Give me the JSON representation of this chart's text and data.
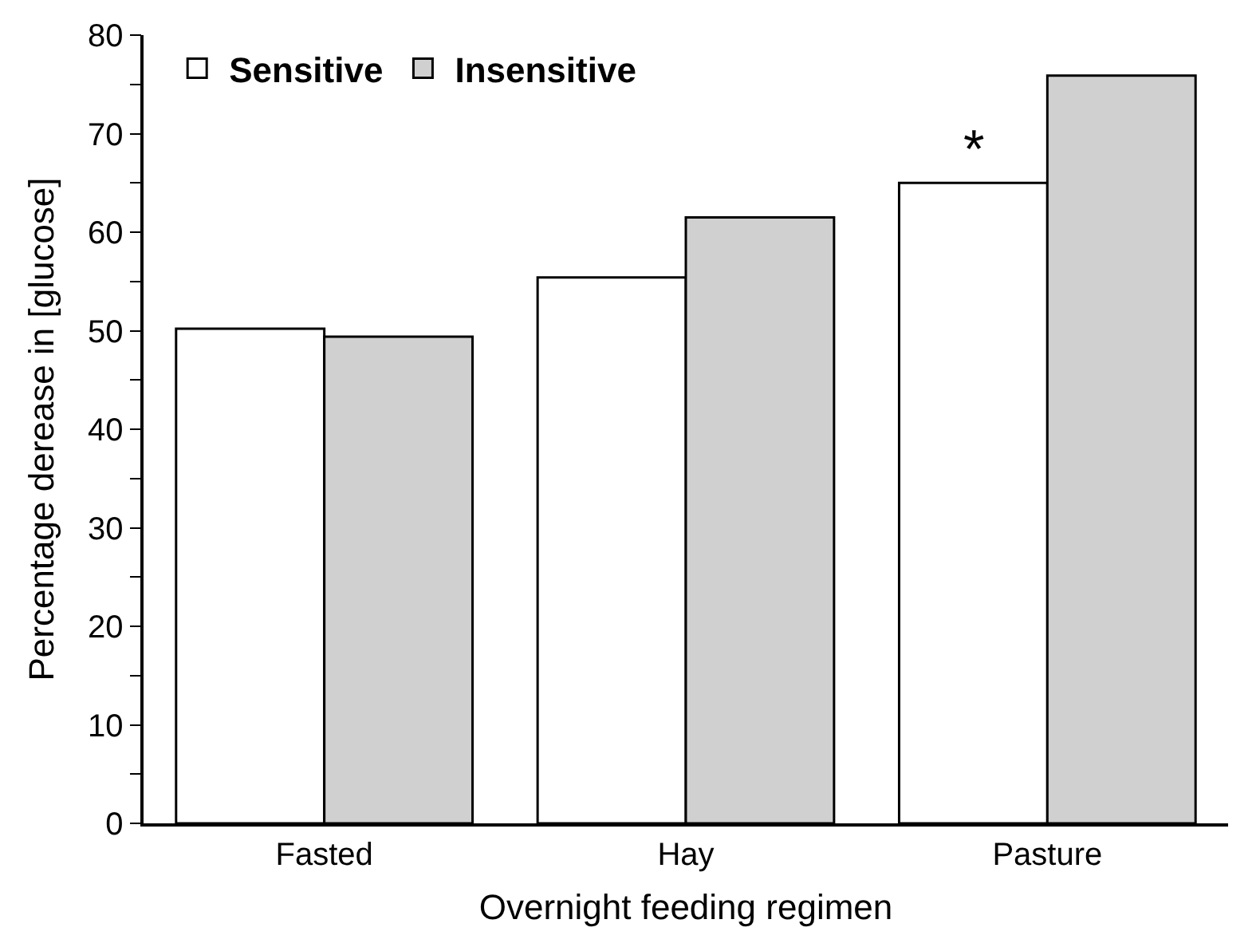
{
  "chart_data": {
    "type": "bar",
    "xlabel": "Overnight feeding regimen",
    "ylabel": "Percentage derease in [glucose]",
    "categories": [
      "Fasted",
      "Hay",
      "Pasture"
    ],
    "series": [
      {
        "name": "Sensitive",
        "color": "#ffffff",
        "values": [
          50.2,
          55.4,
          65.0
        ]
      },
      {
        "name": "Insensitive",
        "color": "#d0d0d0",
        "values": [
          49.4,
          61.5,
          75.9
        ]
      }
    ],
    "ylim": [
      0,
      80
    ],
    "yticks": [
      0,
      {
        "value": 5,
        "label": null
      },
      10,
      {
        "value": 15,
        "label": null
      },
      20,
      {
        "value": 25,
        "label": null
      },
      30,
      {
        "value": 35,
        "label": null
      },
      40,
      {
        "value": 45,
        "label": null
      },
      50,
      {
        "value": 55,
        "label": null
      },
      60,
      {
        "value": 65,
        "label": null
      },
      70,
      {
        "value": 75,
        "label": null
      },
      80
    ],
    "annotations": [
      {
        "text": "*",
        "x": "Pasture",
        "y": 65.0
      }
    ],
    "legend": "top left"
  }
}
